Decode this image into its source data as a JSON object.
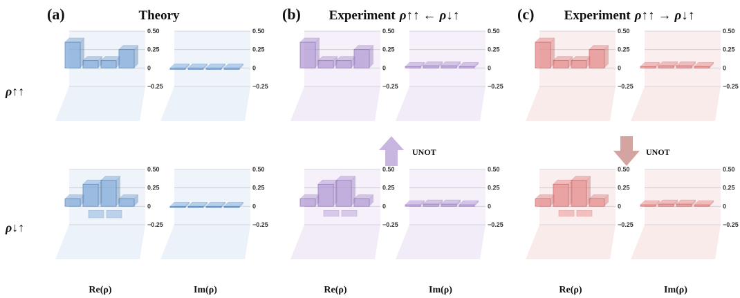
{
  "figure": {
    "panels": [
      {
        "letter": "(a)",
        "title_prefix": "Theory",
        "title_rho_left": "",
        "arrow": "",
        "title_rho_right": "",
        "theme": "blue"
      },
      {
        "letter": "(b)",
        "title_prefix": "Experiment",
        "title_rho_left": "ρ↑↑",
        "arrow": "←",
        "title_rho_right": "ρ↓↑",
        "theme": "purple"
      },
      {
        "letter": "(c)",
        "title_prefix": "Experiment",
        "title_rho_left": "ρ↑↑",
        "arrow": "→",
        "title_rho_right": "ρ↓↑",
        "theme": "red"
      }
    ],
    "row_labels": [
      "ρ↑↑",
      "ρ↓↑"
    ],
    "column_labels": [
      "Re(ρ)",
      "Im(ρ)"
    ],
    "z_ticks": [
      "0.50",
      "0.25",
      "0",
      "−0.25"
    ],
    "unot_label": "UNOT",
    "colors": {
      "blue": "#6a9bd2",
      "purple": "#a88ccc",
      "red": "#e07a7a",
      "blue_arrow": "#c9b6e0",
      "red_arrow": "#d4a5a0"
    }
  },
  "chart_data": [
    {
      "type": "bar3d",
      "panel": "(a)",
      "row": "ρ↑↑",
      "component": "Re(ρ)",
      "zlim": [
        -0.25,
        0.5
      ],
      "rows": [
        [
          0.2,
          0.1,
          0.1,
          0.2
        ],
        [
          0.1,
          0.0,
          0.0,
          0.0
        ],
        [
          0.1,
          0.0,
          0.0,
          0.0
        ],
        [
          0.0,
          0.0,
          0.0,
          0.0
        ]
      ],
      "values_note": "",
      "front_row": [
        0.35,
        0.1,
        0.1,
        0.25
      ]
    },
    {
      "type": "bar3d",
      "panel": "(a)",
      "row": "ρ↑↑",
      "component": "Im(ρ)",
      "zlim": [
        -0.25,
        0.5
      ],
      "front_row": [
        0.0,
        0.0,
        0.0,
        0.0
      ]
    },
    {
      "type": "bar3d",
      "panel": "(a)",
      "row": "ρ↓↑",
      "component": "Re(ρ)",
      "zlim": [
        -0.25,
        0.5
      ],
      "front_row": [
        0.1,
        0.3,
        0.35,
        0.1
      ],
      "negative_row": [
        0.0,
        -0.1,
        -0.1,
        0.0
      ]
    },
    {
      "type": "bar3d",
      "panel": "(a)",
      "row": "ρ↓↑",
      "component": "Im(ρ)",
      "zlim": [
        -0.25,
        0.5
      ],
      "front_row": [
        0.0,
        0.0,
        0.0,
        0.0
      ]
    },
    {
      "type": "bar3d",
      "panel": "(b)",
      "row": "ρ↑↑",
      "component": "Re(ρ)",
      "zlim": [
        -0.25,
        0.5
      ],
      "front_row": [
        0.35,
        0.1,
        0.1,
        0.25
      ]
    },
    {
      "type": "bar3d",
      "panel": "(b)",
      "row": "ρ↑↑",
      "component": "Im(ρ)",
      "zlim": [
        -0.25,
        0.5
      ],
      "front_row": [
        0.02,
        0.03,
        0.03,
        0.02
      ]
    },
    {
      "type": "bar3d",
      "panel": "(b)",
      "row": "ρ↓↑",
      "component": "Re(ρ)",
      "zlim": [
        -0.25,
        0.5
      ],
      "front_row": [
        0.1,
        0.3,
        0.35,
        0.1
      ],
      "negative_row": [
        0.0,
        -0.08,
        -0.08,
        0.0
      ]
    },
    {
      "type": "bar3d",
      "panel": "(b)",
      "row": "ρ↓↑",
      "component": "Im(ρ)",
      "zlim": [
        -0.25,
        0.5
      ],
      "front_row": [
        0.02,
        0.03,
        0.03,
        0.02
      ]
    },
    {
      "type": "bar3d",
      "panel": "(c)",
      "row": "ρ↑↑",
      "component": "Re(ρ)",
      "zlim": [
        -0.25,
        0.5
      ],
      "front_row": [
        0.35,
        0.1,
        0.1,
        0.25
      ]
    },
    {
      "type": "bar3d",
      "panel": "(c)",
      "row": "ρ↑↑",
      "component": "Im(ρ)",
      "zlim": [
        -0.25,
        0.5
      ],
      "front_row": [
        0.02,
        0.03,
        0.03,
        0.02
      ]
    },
    {
      "type": "bar3d",
      "panel": "(c)",
      "row": "ρ↓↑",
      "component": "Re(ρ)",
      "zlim": [
        -0.25,
        0.5
      ],
      "front_row": [
        0.1,
        0.3,
        0.35,
        0.1
      ],
      "negative_row": [
        0.0,
        -0.08,
        -0.08,
        0.0
      ]
    },
    {
      "type": "bar3d",
      "panel": "(c)",
      "row": "ρ↓↑",
      "component": "Im(ρ)",
      "zlim": [
        -0.25,
        0.5
      ],
      "front_row": [
        0.02,
        0.03,
        0.03,
        0.02
      ]
    }
  ]
}
